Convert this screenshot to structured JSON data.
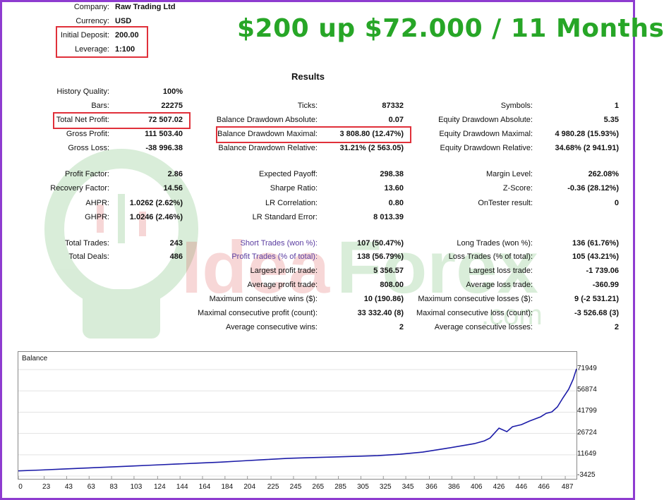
{
  "headline": "$200 up $72.000 / 11 Months",
  "header": {
    "company_label": "Company:",
    "company_value": "Raw Trading Ltd",
    "currency_label": "Currency:",
    "currency_value": "USD",
    "deposit_label": "Initial Deposit:",
    "deposit_value": "200.00",
    "leverage_label": "Leverage:",
    "leverage_value": "1:100"
  },
  "results_title": "Results",
  "col1": [
    {
      "label": "History Quality:",
      "value": "100%"
    },
    {
      "label": "Bars:",
      "value": "22275"
    },
    {
      "label": "Total Net Profit:",
      "value": "72 507.02"
    },
    {
      "label": "Gross Profit:",
      "value": "111 503.40"
    },
    {
      "label": "Gross Loss:",
      "value": "-38 996.38"
    },
    {
      "label": "Profit Factor:",
      "value": "2.86"
    },
    {
      "label": "Recovery Factor:",
      "value": "14.56"
    },
    {
      "label": "AHPR:",
      "value": "1.0262 (2.62%)"
    },
    {
      "label": "GHPR:",
      "value": "1.0246 (2.46%)"
    },
    {
      "label": "Total Trades:",
      "value": "243"
    },
    {
      "label": "Total Deals:",
      "value": "486"
    }
  ],
  "col2": [
    {
      "label": "Ticks:",
      "value": "87332"
    },
    {
      "label": "Balance Drawdown Absolute:",
      "value": "0.07"
    },
    {
      "label": "Balance Drawdown Maximal:",
      "value": "3 808.80 (12.47%)"
    },
    {
      "label": "Balance Drawdown Relative:",
      "value": "31.21% (2 563.05)"
    },
    {
      "label": "Expected Payoff:",
      "value": "298.38"
    },
    {
      "label": "Sharpe Ratio:",
      "value": "13.60"
    },
    {
      "label": "LR Correlation:",
      "value": "0.80"
    },
    {
      "label": "LR Standard Error:",
      "value": "8 013.39"
    },
    {
      "label": "Short Trades (won %):",
      "value": "107 (50.47%)"
    },
    {
      "label": "Profit Trades (% of total):",
      "value": "138 (56.79%)"
    },
    {
      "label": "Largest profit trade:",
      "value": "5 356.57"
    },
    {
      "label": "Average profit trade:",
      "value": "808.00"
    },
    {
      "label": "Maximum consecutive wins ($):",
      "value": "10 (190.86)"
    },
    {
      "label": "Maximal consecutive profit (count):",
      "value": "33 332.40 (8)"
    },
    {
      "label": "Average consecutive wins:",
      "value": "2"
    }
  ],
  "col3": [
    {
      "label": "Symbols:",
      "value": "1"
    },
    {
      "label": "Equity Drawdown Absolute:",
      "value": "5.35"
    },
    {
      "label": "Equity Drawdown Maximal:",
      "value": "4 980.28 (15.93%)"
    },
    {
      "label": "Equity Drawdown Relative:",
      "value": "34.68% (2 941.91)"
    },
    {
      "label": "Margin Level:",
      "value": "262.08%"
    },
    {
      "label": "Z-Score:",
      "value": "-0.36 (28.12%)"
    },
    {
      "label": "OnTester result:",
      "value": "0"
    },
    {
      "label": "Long Trades (won %):",
      "value": "136 (61.76%)"
    },
    {
      "label": "Loss Trades (% of total):",
      "value": "105 (43.21%)"
    },
    {
      "label": "Largest loss trade:",
      "value": "-1 739.06"
    },
    {
      "label": "Average loss trade:",
      "value": "-360.99"
    },
    {
      "label": "Maximum consecutive losses ($):",
      "value": "9 (-2 531.21)"
    },
    {
      "label": "Maximal consecutive loss (count):",
      "value": "-3 526.68 (3)"
    },
    {
      "label": "Average consecutive losses:",
      "value": "2"
    }
  ],
  "watermark": {
    "brand_idea": "Idea",
    "brand_forex": "Forex",
    "brand_com": ".com"
  },
  "colors": {
    "headline": "#27a627",
    "highlight_box": "#e0303a",
    "balance_line": "#1c1ca8",
    "border": "#8e3cd0"
  },
  "chart_data": {
    "type": "line",
    "title": "Balance",
    "xlabel": "",
    "ylabel": "",
    "x_ticks": [
      0,
      23,
      43,
      63,
      83,
      103,
      124,
      144,
      164,
      184,
      204,
      225,
      245,
      265,
      285,
      305,
      325,
      345,
      366,
      386,
      406,
      426,
      446,
      466,
      487
    ],
    "y_ticks": [
      71949,
      56874,
      41799,
      26724,
      11649,
      -3425
    ],
    "xlim": [
      0,
      497
    ],
    "ylim": [
      -3425,
      79487
    ],
    "series": [
      {
        "x": [
          0,
          20,
          40,
          60,
          80,
          100,
          120,
          140,
          160,
          180,
          200,
          220,
          240,
          260,
          280,
          300,
          320,
          340,
          360,
          380,
          395,
          406,
          415,
          420,
          428,
          435,
          440,
          448,
          455,
          460,
          465,
          470,
          475,
          480,
          485,
          490,
          494,
          497
        ],
        "y": [
          200,
          800,
          1500,
          2200,
          2900,
          3600,
          4300,
          5000,
          5700,
          6400,
          7300,
          8200,
          9100,
          9600,
          10000,
          10500,
          11000,
          12000,
          13500,
          16000,
          18000,
          19500,
          21500,
          23500,
          30500,
          28000,
          31500,
          33000,
          35500,
          37000,
          38500,
          41000,
          42000,
          45500,
          52000,
          58000,
          65000,
          72507
        ]
      }
    ]
  }
}
